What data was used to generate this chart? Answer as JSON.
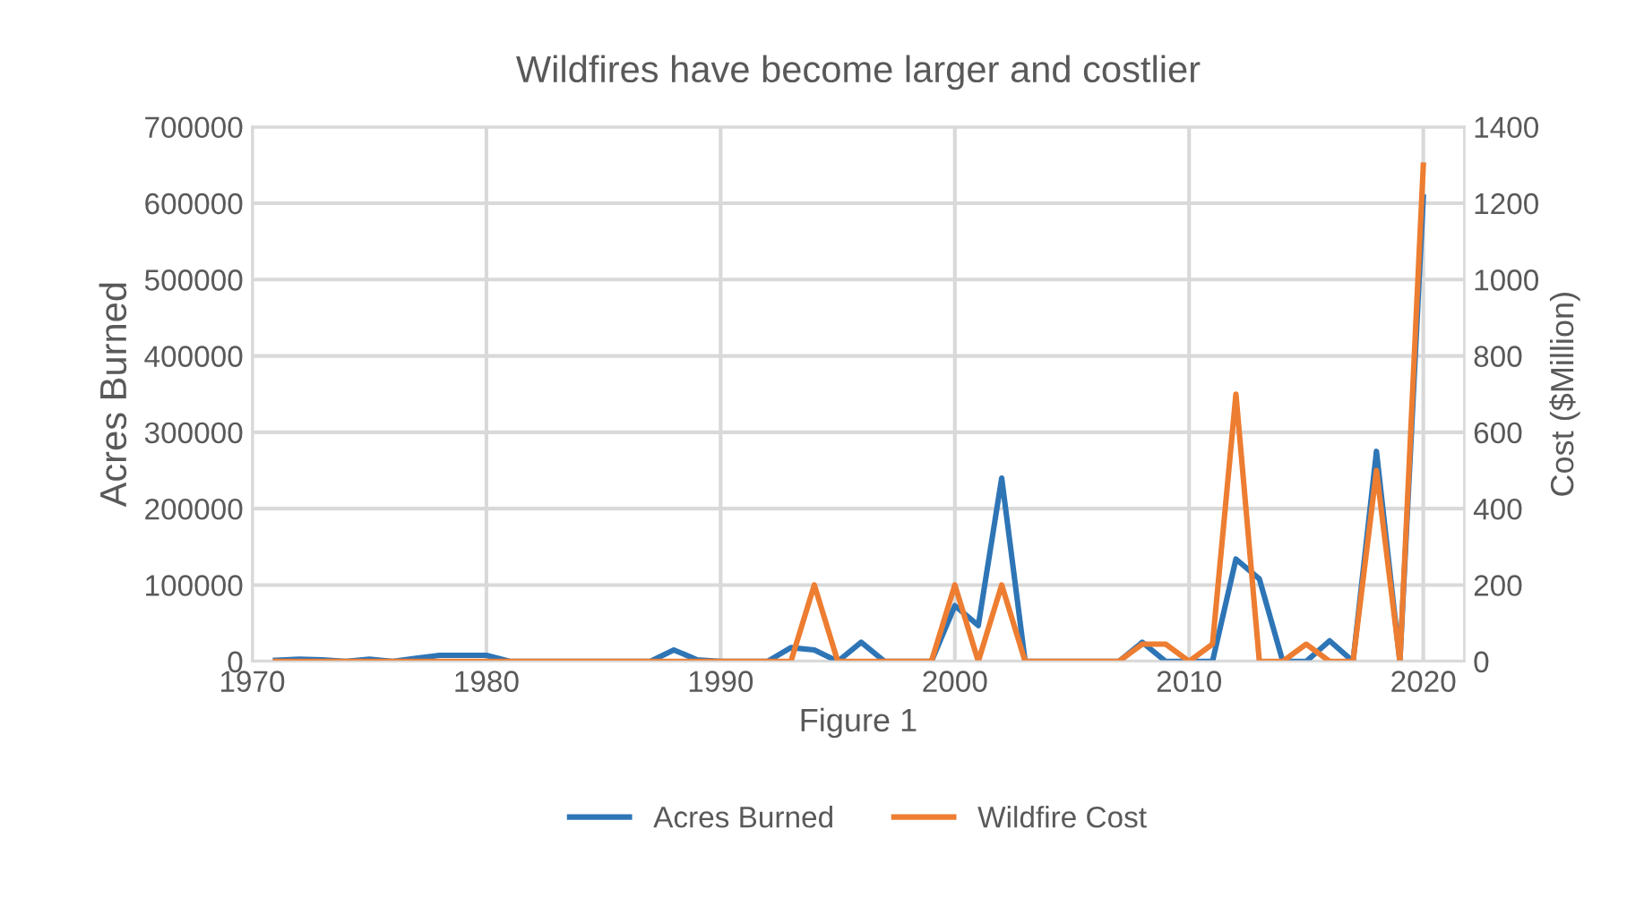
{
  "chart_data": {
    "type": "line",
    "title": "Wildfires have become larger and costlier",
    "xlabel": "Figure 1",
    "ylabel": "Acres Burned",
    "y2label": "Cost ($Million)",
    "x": [
      1971,
      1972,
      1973,
      1974,
      1975,
      1976,
      1977,
      1978,
      1979,
      1980,
      1981,
      1982,
      1983,
      1984,
      1985,
      1986,
      1987,
      1988,
      1989,
      1990,
      1991,
      1992,
      1993,
      1994,
      1995,
      1996,
      1997,
      1998,
      1999,
      2000,
      2001,
      2002,
      2003,
      2004,
      2005,
      2006,
      2007,
      2008,
      2009,
      2010,
      2011,
      2012,
      2013,
      2014,
      2015,
      2016,
      2017,
      2018,
      2019,
      2020
    ],
    "series": [
      {
        "name": "Acres Burned",
        "color": "#2e75b6",
        "values": [
          1500,
          3000,
          2000,
          0,
          3000,
          0,
          4000,
          8000,
          8000,
          8000,
          0,
          0,
          0,
          0,
          0,
          0,
          0,
          15000,
          2000,
          0,
          0,
          0,
          18000,
          15000,
          0,
          25000,
          0,
          0,
          0,
          73000,
          47000,
          240000,
          0,
          0,
          0,
          0,
          0,
          25000,
          0,
          0,
          0,
          134000,
          108000,
          0,
          0,
          27000,
          0,
          275000,
          0,
          608000
        ]
      },
      {
        "name": "Wildfire Cost",
        "color": "#ed7d31",
        "axis": "y2",
        "values": [
          0,
          0,
          0,
          0,
          0,
          0,
          0,
          0,
          0,
          0,
          0,
          0,
          0,
          0,
          0,
          0,
          0,
          0,
          0,
          0,
          0,
          0,
          0,
          200,
          0,
          0,
          0,
          0,
          0,
          200,
          0,
          200,
          0,
          0,
          0,
          0,
          0,
          45,
          45,
          0,
          45,
          700,
          0,
          0,
          45,
          0,
          0,
          500,
          0,
          1300
        ]
      }
    ],
    "xlim": [
      1970,
      2021.75
    ],
    "xticks": [
      1970,
      1980,
      1990,
      2000,
      2010,
      2020
    ],
    "ylim": [
      0,
      700000
    ],
    "yticks": [
      0,
      100000,
      200000,
      300000,
      400000,
      500000,
      600000,
      700000
    ],
    "y2lim": [
      0,
      1400
    ],
    "y2ticks": [
      0,
      200,
      400,
      600,
      800,
      1000,
      1200,
      1400
    ],
    "grid": true,
    "legend": "bottom"
  }
}
